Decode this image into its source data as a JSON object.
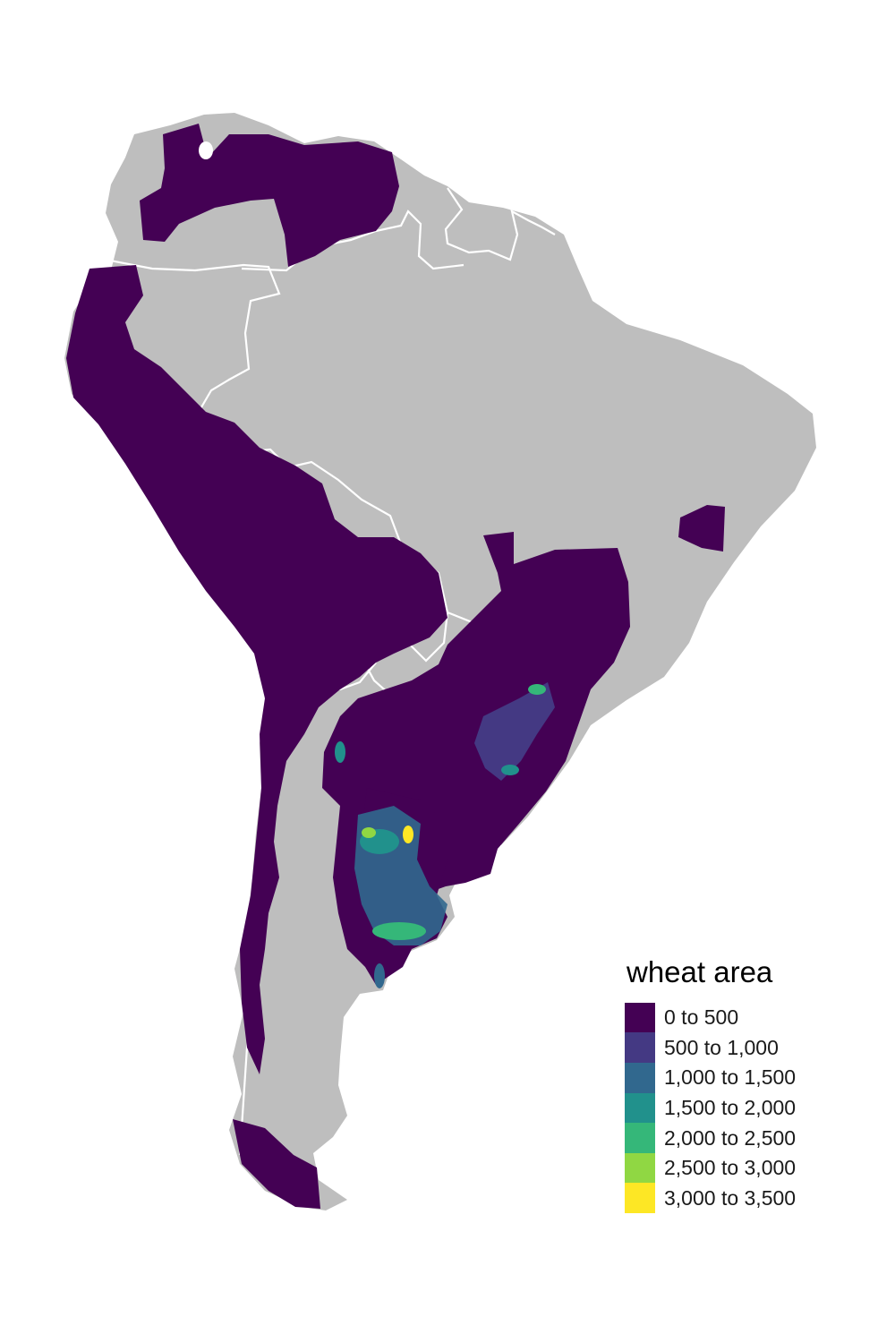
{
  "legend": {
    "title": "wheat area",
    "items": [
      {
        "label": "0 to 500",
        "color": "#440154"
      },
      {
        "label": "500 to 1,000",
        "color": "#443983"
      },
      {
        "label": "1,000 to 1,500",
        "color": "#31688e"
      },
      {
        "label": "1,500 to 2,000",
        "color": "#21918c"
      },
      {
        "label": "2,000 to 2,500",
        "color": "#35b779"
      },
      {
        "label": "2,500 to 3,000",
        "color": "#90d743"
      },
      {
        "label": "3,000 to 3,500",
        "color": "#fde725"
      }
    ]
  },
  "colors": {
    "land": "#bebebe",
    "border": "#ffffff",
    "background": "#ffffff"
  }
}
